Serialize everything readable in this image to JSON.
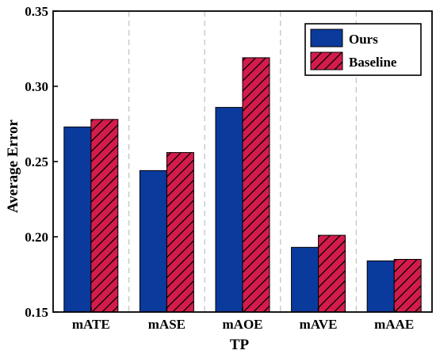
{
  "chart_data": {
    "type": "bar",
    "title": "",
    "xlabel": "TP",
    "ylabel": "Average Error",
    "ylim": [
      0.15,
      0.35
    ],
    "yticks": [
      0.15,
      0.2,
      0.25,
      0.3,
      0.35
    ],
    "ytick_labels": [
      "0.15",
      "0.20",
      "0.25",
      "0.30",
      "0.35"
    ],
    "categories": [
      "mATE",
      "mASE",
      "mAOE",
      "mAVE",
      "mAAE"
    ],
    "series": [
      {
        "name": "Ours",
        "values": [
          0.273,
          0.244,
          0.286,
          0.193,
          0.184
        ],
        "color": "#0a3a9c",
        "pattern": "solid"
      },
      {
        "name": "Baseline",
        "values": [
          0.278,
          0.256,
          0.319,
          0.201,
          0.185
        ],
        "color": "#d41c4c",
        "pattern": "hatch"
      }
    ],
    "grid": "vertical dashed separators between categories",
    "legend_position": "top-right"
  }
}
